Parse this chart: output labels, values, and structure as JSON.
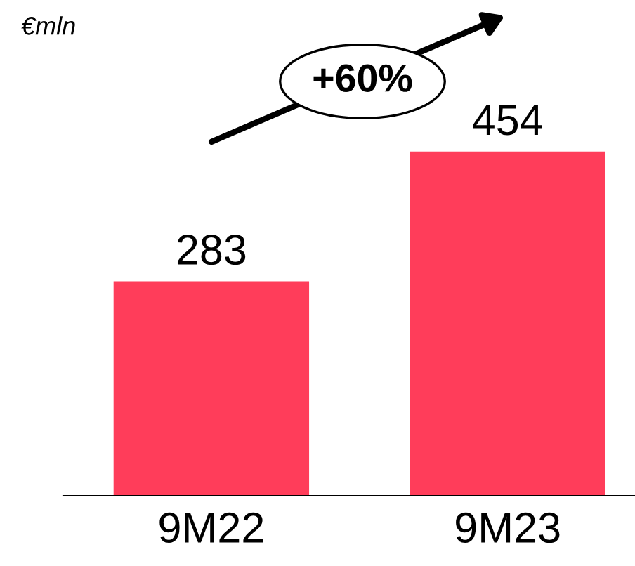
{
  "chart_data": {
    "type": "bar",
    "categories": [
      "9M22",
      "9M23"
    ],
    "values": [
      283,
      454
    ],
    "color": "#ff3d5a",
    "data_labels": true,
    "grid": false,
    "legend": false,
    "annotations": [
      "€mln",
      "+60%"
    ]
  }
}
